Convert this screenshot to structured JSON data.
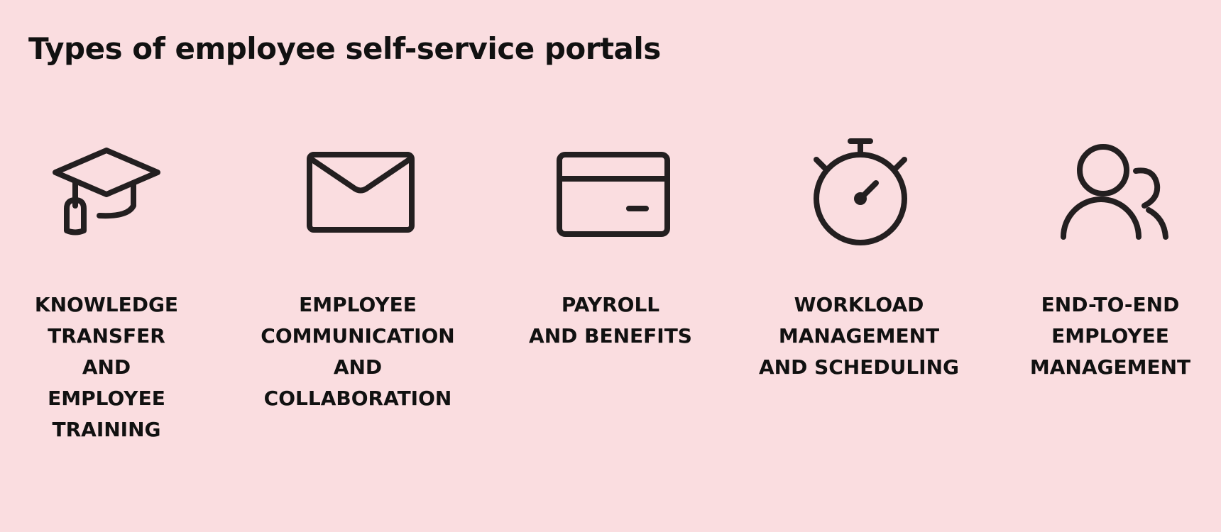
{
  "title": "Types of employee self-service portals",
  "colors": {
    "background": "#FADDE0",
    "icon_stroke": "#231F20",
    "text": "#111111"
  },
  "portals": [
    {
      "icon": "graduation-cap-icon",
      "label_lines": [
        "KNOWLEDGE",
        "TRANSFER",
        "AND",
        "EMPLOYEE",
        "TRAINING"
      ]
    },
    {
      "icon": "envelope-icon",
      "label_lines": [
        "EMPLOYEE",
        "COMMUNICATION",
        "AND",
        "COLLABORATION"
      ]
    },
    {
      "icon": "credit-card-icon",
      "label_lines": [
        "PAYROLL",
        "AND BENEFITS"
      ]
    },
    {
      "icon": "stopwatch-icon",
      "label_lines": [
        "WORKLOAD",
        "MANAGEMENT",
        "AND SCHEDULING"
      ]
    },
    {
      "icon": "users-icon",
      "label_lines": [
        "END-TO-END",
        "EMPLOYEE",
        "MANAGEMENT"
      ]
    }
  ]
}
